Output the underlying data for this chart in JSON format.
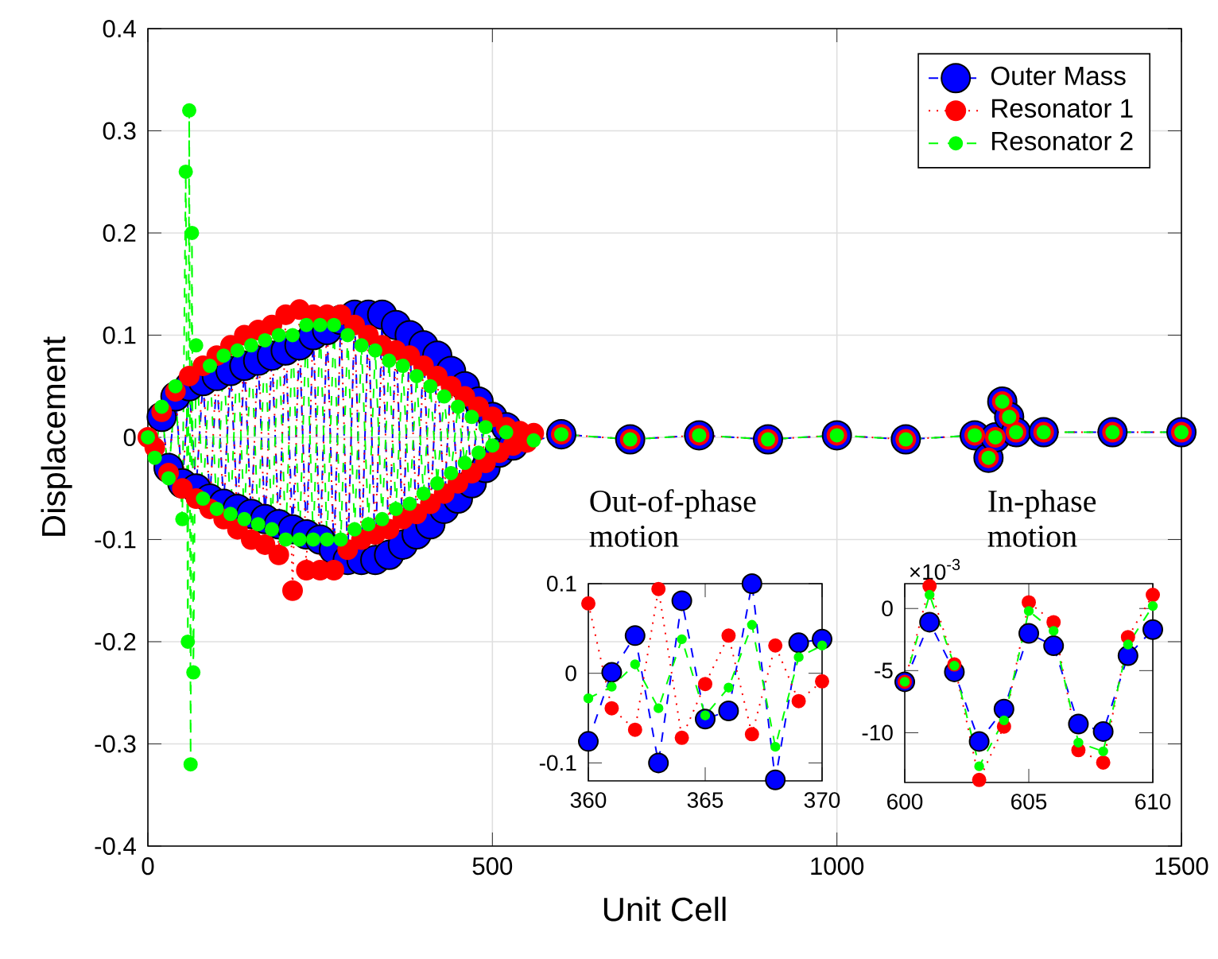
{
  "chart_data": [
    {
      "type": "line",
      "xlabel": "Unit Cell",
      "ylabel": "Displacement",
      "xlim": [
        0,
        1500
      ],
      "ylim": [
        -0.4,
        0.4
      ],
      "xticks": [
        0,
        500,
        1000,
        1500
      ],
      "yticks": [
        -0.4,
        -0.3,
        -0.2,
        -0.1,
        0,
        0.1,
        0.2,
        0.3,
        0.4
      ],
      "grid": true,
      "legend": "top right",
      "marker": "circle",
      "x": [
        0,
        10,
        20,
        30,
        40,
        50,
        60,
        70,
        80,
        90,
        100,
        110,
        120,
        130,
        140,
        150,
        160,
        170,
        180,
        190,
        200,
        210,
        220,
        230,
        240,
        250,
        260,
        270,
        280,
        290,
        300,
        310,
        320,
        330,
        340,
        350,
        360,
        370,
        380,
        390,
        400,
        410,
        420,
        430,
        440,
        450,
        460,
        470,
        480,
        490,
        500,
        510,
        520,
        530,
        540,
        550,
        560,
        600,
        700,
        800,
        900,
        1000,
        1100,
        1200,
        1220,
        1230,
        1240,
        1250,
        1260,
        1300,
        1400,
        1500
      ],
      "series": [
        {
          "name": "Outer Mass",
          "color": "#0000ff",
          "line_style": "dashed",
          "values": [
            null,
            null,
            0.02,
            -0.03,
            0.04,
            -0.045,
            0.05,
            -0.05,
            0.055,
            -0.06,
            0.06,
            -0.065,
            0.065,
            -0.07,
            0.07,
            -0.075,
            0.075,
            -0.08,
            0.08,
            -0.085,
            0.085,
            -0.09,
            0.09,
            -0.095,
            0.1,
            -0.1,
            0.105,
            -0.11,
            0.115,
            -0.12,
            0.12,
            -0.12,
            0.12,
            -0.12,
            0.12,
            -0.115,
            0.11,
            -0.105,
            0.1,
            -0.095,
            0.09,
            -0.085,
            0.08,
            -0.07,
            0.065,
            -0.06,
            0.05,
            -0.045,
            0.035,
            -0.03,
            0.02,
            -0.015,
            0.01,
            -0.008,
            null,
            null,
            null,
            0.003,
            -0.002,
            0.002,
            -0.002,
            0.002,
            -0.002,
            0.002,
            -0.02,
            0,
            0.035,
            0.02,
            0.005,
            0.005,
            0.005,
            0.005
          ]
        },
        {
          "name": "Resonator 1",
          "color": "#ff0000",
          "line_style": "dotted",
          "values": [
            0,
            -0.01,
            0.025,
            -0.035,
            0.045,
            -0.05,
            0.06,
            -0.06,
            0.07,
            -0.07,
            0.08,
            -0.08,
            0.09,
            -0.09,
            0.1,
            -0.1,
            0.105,
            -0.105,
            0.11,
            -0.115,
            0.12,
            -0.15,
            0.125,
            -0.13,
            0.12,
            -0.13,
            0.12,
            -0.13,
            0.12,
            -0.11,
            0.11,
            -0.1,
            0.1,
            -0.095,
            0.09,
            -0.09,
            0.085,
            -0.08,
            0.08,
            -0.075,
            0.07,
            -0.065,
            0.06,
            -0.055,
            0.05,
            -0.045,
            0.04,
            -0.035,
            0.03,
            -0.025,
            0.02,
            -0.015,
            0.01,
            -0.008,
            0.006,
            -0.005,
            0.004,
            0.003,
            -0.002,
            0.002,
            -0.002,
            0.002,
            -0.002,
            0.002,
            -0.02,
            0,
            0.035,
            0.02,
            0.005,
            0.005,
            0.005,
            0.005
          ]
        },
        {
          "name": "Resonator 2",
          "color": "#00ff00",
          "line_style": "dashed",
          "x": [
            0,
            10,
            20,
            30,
            40,
            50,
            55,
            58,
            60,
            62,
            64,
            66,
            70,
            80,
            90,
            100,
            110,
            120,
            130,
            140,
            150,
            160,
            170,
            180,
            190,
            200,
            210,
            220,
            230,
            240,
            250,
            260,
            270,
            280,
            290,
            300,
            310,
            320,
            330,
            340,
            350,
            360,
            370,
            380,
            390,
            400,
            410,
            420,
            430,
            440,
            450,
            460,
            470,
            480,
            490,
            500,
            520,
            560,
            600,
            700,
            800,
            900,
            1000,
            1100,
            1200,
            1220,
            1230,
            1240,
            1250,
            1260,
            1300,
            1400,
            1500
          ],
          "values": [
            0,
            -0.02,
            0.03,
            -0.04,
            0.05,
            -0.08,
            0.26,
            -0.2,
            0.32,
            -0.32,
            0.2,
            -0.23,
            0.09,
            -0.06,
            0.07,
            -0.07,
            0.08,
            -0.075,
            0.085,
            -0.08,
            0.09,
            -0.085,
            0.095,
            -0.09,
            0.1,
            -0.1,
            0.1,
            -0.1,
            0.11,
            -0.1,
            0.11,
            -0.1,
            0.11,
            -0.1,
            0.1,
            -0.09,
            0.09,
            -0.085,
            0.085,
            -0.08,
            0.075,
            -0.07,
            0.07,
            -0.065,
            0.06,
            -0.055,
            0.05,
            -0.045,
            0.04,
            -0.035,
            0.03,
            -0.025,
            0.02,
            -0.015,
            0.01,
            -0.008,
            0.005,
            -0.003,
            0.003,
            -0.002,
            0.002,
            -0.002,
            0.002,
            -0.002,
            0.002,
            -0.02,
            0,
            0.035,
            0.02,
            0.005,
            0.005,
            0.005,
            0.005
          ]
        }
      ]
    },
    {
      "type": "line",
      "title": "Out-of-phase motion",
      "xlim": [
        360,
        370
      ],
      "ylim": [
        -0.12,
        0.1
      ],
      "xticks": [
        360,
        365,
        370
      ],
      "yticks": [
        -0.1,
        0,
        0.1
      ],
      "marker": "circle",
      "x": [
        360,
        361,
        362,
        363,
        364,
        365,
        366,
        367,
        368,
        369,
        370
      ],
      "series": [
        {
          "color": "#0000ff",
          "line_style": "dashed",
          "values": [
            -0.076,
            0.001,
            0.042,
            -0.1,
            0.081,
            -0.051,
            -0.042,
            0.1,
            -0.119,
            0.034,
            0.038
          ]
        },
        {
          "color": "#ff0000",
          "line_style": "dotted",
          "values": [
            0.078,
            -0.039,
            -0.063,
            0.094,
            -0.072,
            -0.012,
            0.042,
            -0.068,
            0.031,
            -0.031,
            -0.009
          ]
        },
        {
          "color": "#00ff00",
          "line_style": "dashed",
          "values": [
            -0.028,
            -0.015,
            0.01,
            -0.039,
            0.038,
            -0.047,
            -0.016,
            0.054,
            -0.082,
            0.018,
            0.031
          ]
        }
      ]
    },
    {
      "type": "line",
      "title": "In-phase motion",
      "annotations": [
        "×10$^{-3}$"
      ],
      "xlim": [
        600,
        610
      ],
      "ylim": [
        -14,
        2
      ],
      "xticks": [
        600,
        605,
        610
      ],
      "yticks": [
        -10,
        -5,
        0
      ],
      "marker": "circle",
      "x": [
        600,
        601,
        602,
        603,
        604,
        605,
        606,
        607,
        608,
        609,
        610
      ],
      "series": [
        {
          "color": "#0000ff",
          "line_style": "dashed",
          "values": [
            -5.9,
            -1.1,
            -5.1,
            -10.7,
            -8.1,
            -2,
            -3,
            -9.3,
            -9.9,
            -3.8,
            -1.7
          ]
        },
        {
          "color": "#ff0000",
          "line_style": "dotted",
          "values": [
            -5.9,
            1.8,
            -4.5,
            -13.8,
            -9.5,
            0.5,
            -1.1,
            -11.4,
            -12.4,
            -2.3,
            1.1
          ]
        },
        {
          "color": "#00ff00",
          "line_style": "dashed",
          "values": [
            -5.9,
            1.1,
            -4.6,
            -12.7,
            -9,
            -0.2,
            -1.8,
            -10.8,
            -11.5,
            -2.9,
            0.2
          ]
        }
      ]
    }
  ]
}
